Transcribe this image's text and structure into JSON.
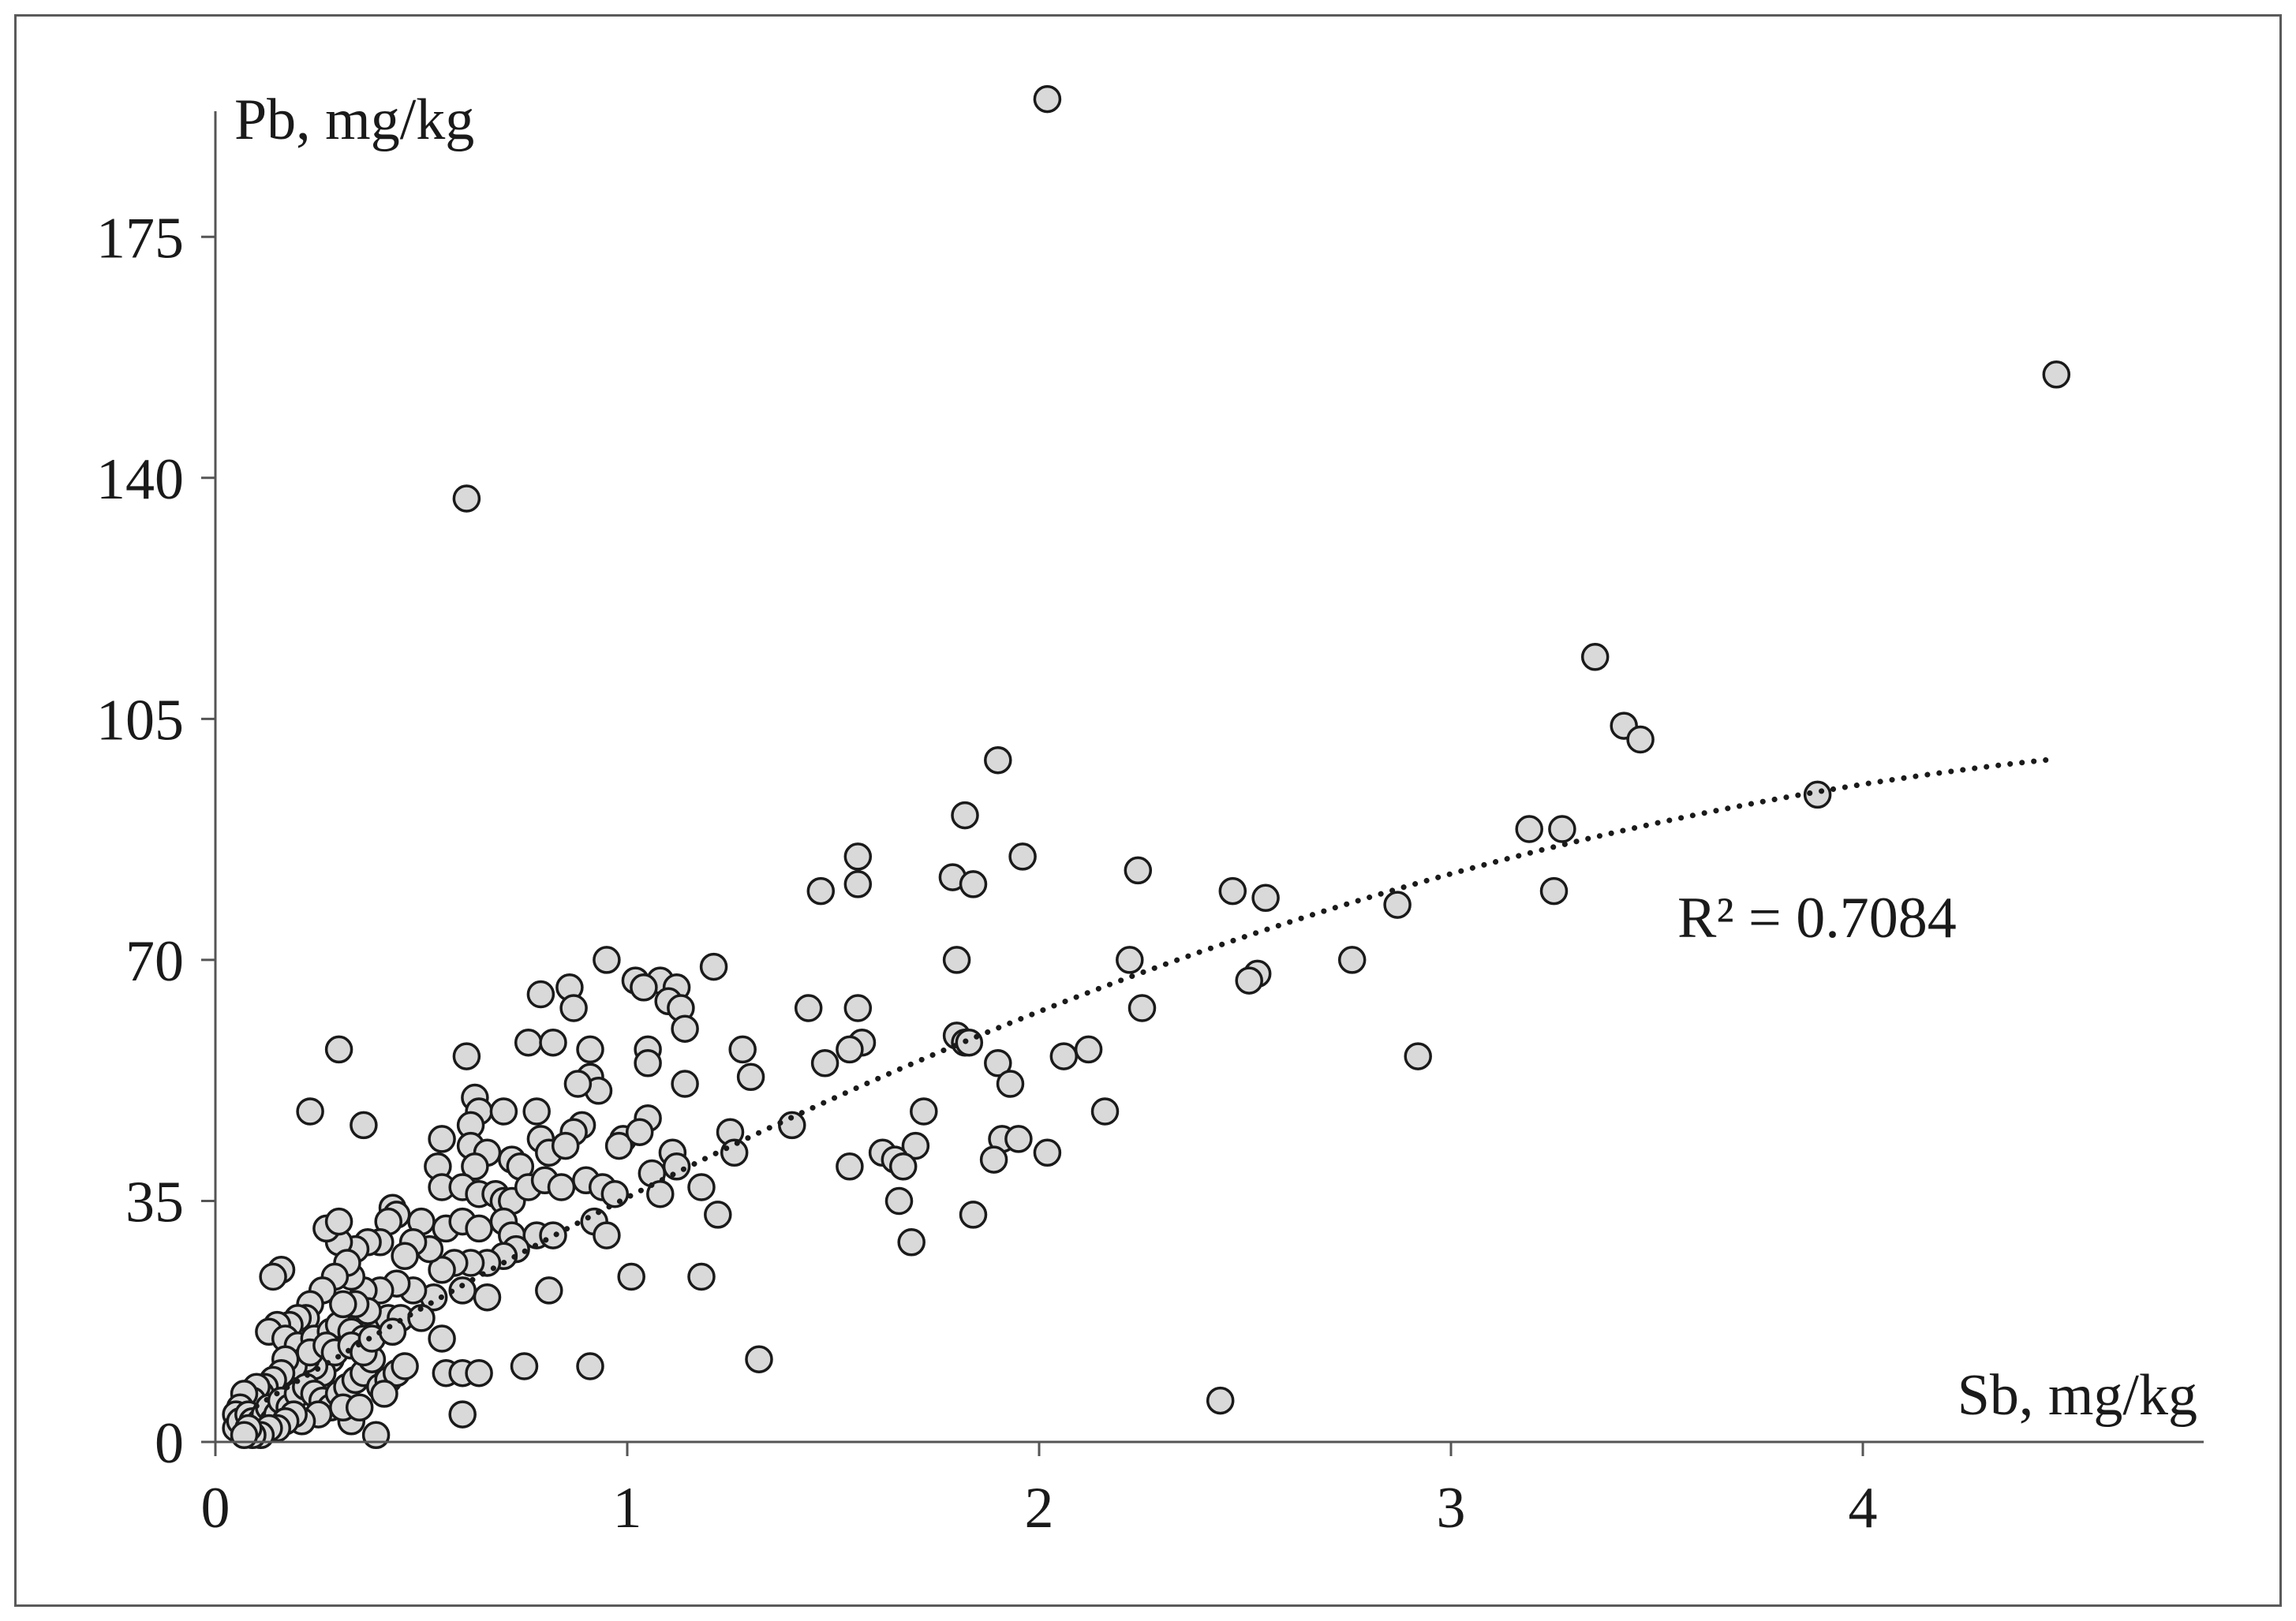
{
  "chart_data": {
    "type": "scatter",
    "title": "",
    "xlabel": "Sb, mg/kg",
    "ylabel": "Pb, mg/kg",
    "xlim": [
      0,
      4.8
    ],
    "ylim": [
      0,
      190
    ],
    "x_ticks": [
      "0",
      "1",
      "2",
      "3",
      "4"
    ],
    "y_ticks": [
      "0",
      "35",
      "70",
      "105",
      "140",
      "175"
    ],
    "grid": false,
    "legend": "none",
    "annotation": "R² = 0.7084",
    "trendline": {
      "type": "polynomial",
      "r2": 0.7084,
      "x_range": [
        0.1,
        4.45
      ],
      "coefficients": [
        1.5,
        37.5,
        -3.5
      ]
    },
    "colors": {
      "marker_fill": "#d9d9d9",
      "marker_edge": "#1a1a1a",
      "axis": "#555555"
    },
    "points": [
      [
        2.02,
        195
      ],
      [
        4.47,
        155
      ],
      [
        0.61,
        137
      ],
      [
        3.35,
        114
      ],
      [
        3.42,
        104
      ],
      [
        3.46,
        102
      ],
      [
        1.9,
        99
      ],
      [
        3.89,
        94
      ],
      [
        1.82,
        91
      ],
      [
        3.19,
        89
      ],
      [
        3.27,
        89
      ],
      [
        1.56,
        85
      ],
      [
        1.96,
        85
      ],
      [
        1.79,
        82
      ],
      [
        1.84,
        81
      ],
      [
        2.24,
        83
      ],
      [
        1.56,
        81
      ],
      [
        1.47,
        80
      ],
      [
        2.47,
        80
      ],
      [
        3.25,
        80
      ],
      [
        2.55,
        79
      ],
      [
        2.87,
        78
      ],
      [
        2.22,
        70
      ],
      [
        2.76,
        70
      ],
      [
        1.8,
        70
      ],
      [
        2.53,
        68
      ],
      [
        2.51,
        67
      ],
      [
        0.95,
        70
      ],
      [
        1.21,
        69
      ],
      [
        1.02,
        67
      ],
      [
        1.08,
        67
      ],
      [
        1.12,
        66
      ],
      [
        1.04,
        66
      ],
      [
        1.1,
        64
      ],
      [
        1.13,
        63
      ],
      [
        0.86,
        66
      ],
      [
        0.79,
        65
      ],
      [
        0.87,
        63
      ],
      [
        1.14,
        60
      ],
      [
        1.44,
        63
      ],
      [
        1.56,
        63
      ],
      [
        2.25,
        63
      ],
      [
        1.8,
        59
      ],
      [
        1.82,
        58
      ],
      [
        1.83,
        58
      ],
      [
        2.12,
        57
      ],
      [
        2.06,
        56
      ],
      [
        2.92,
        56
      ],
      [
        1.57,
        58
      ],
      [
        1.54,
        57
      ],
      [
        1.48,
        55
      ],
      [
        1.28,
        57
      ],
      [
        0.76,
        58
      ],
      [
        0.82,
        58
      ],
      [
        0.91,
        57
      ],
      [
        1.05,
        57
      ],
      [
        1.05,
        55
      ],
      [
        0.61,
        56
      ],
      [
        0.3,
        57
      ],
      [
        1.3,
        53
      ],
      [
        1.9,
        55
      ],
      [
        1.93,
        52
      ],
      [
        1.14,
        52
      ],
      [
        0.91,
        53
      ],
      [
        0.93,
        51
      ],
      [
        0.88,
        52
      ],
      [
        0.63,
        50
      ],
      [
        0.64,
        48
      ],
      [
        0.7,
        48
      ],
      [
        0.62,
        46
      ],
      [
        0.78,
        48
      ],
      [
        0.89,
        46
      ],
      [
        0.87,
        45
      ],
      [
        1.05,
        47
      ],
      [
        1.72,
        48
      ],
      [
        2.16,
        48
      ],
      [
        1.4,
        46
      ],
      [
        1.25,
        45
      ],
      [
        1.91,
        44
      ],
      [
        1.95,
        44
      ],
      [
        1.7,
        43
      ],
      [
        2.02,
        42
      ],
      [
        1.62,
        42
      ],
      [
        1.65,
        41
      ],
      [
        1.67,
        40
      ],
      [
        1.54,
        40
      ],
      [
        1.89,
        41
      ],
      [
        1.26,
        42
      ],
      [
        1.11,
        42
      ],
      [
        1.12,
        40
      ],
      [
        1.06,
        39
      ],
      [
        0.99,
        44
      ],
      [
        0.98,
        43
      ],
      [
        1.03,
        45
      ],
      [
        0.55,
        44
      ],
      [
        0.62,
        43
      ],
      [
        0.66,
        42
      ],
      [
        0.72,
        41
      ],
      [
        0.79,
        44
      ],
      [
        0.81,
        42
      ],
      [
        0.85,
        43
      ],
      [
        0.74,
        40
      ],
      [
        0.63,
        40
      ],
      [
        0.54,
        40
      ],
      [
        0.55,
        37
      ],
      [
        0.6,
        37
      ],
      [
        0.64,
        36
      ],
      [
        0.68,
        36
      ],
      [
        0.7,
        35
      ],
      [
        0.72,
        35
      ],
      [
        0.76,
        37
      ],
      [
        0.8,
        38
      ],
      [
        0.84,
        37
      ],
      [
        0.9,
        38
      ],
      [
        0.94,
        37
      ],
      [
        0.97,
        36
      ],
      [
        1.08,
        36
      ],
      [
        1.18,
        37
      ],
      [
        1.22,
        33
      ],
      [
        1.84,
        33
      ],
      [
        1.66,
        35
      ],
      [
        1.69,
        29
      ],
      [
        0.36,
        46
      ],
      [
        0.23,
        48
      ],
      [
        0.43,
        34
      ],
      [
        0.44,
        33
      ],
      [
        0.42,
        32
      ],
      [
        0.5,
        32
      ],
      [
        0.56,
        31
      ],
      [
        0.6,
        32
      ],
      [
        0.64,
        31
      ],
      [
        0.7,
        32
      ],
      [
        0.72,
        30
      ],
      [
        0.78,
        30
      ],
      [
        0.82,
        30
      ],
      [
        0.92,
        32
      ],
      [
        0.95,
        30
      ],
      [
        0.73,
        28
      ],
      [
        0.7,
        27
      ],
      [
        0.66,
        26
      ],
      [
        0.62,
        26
      ],
      [
        0.58,
        26
      ],
      [
        0.55,
        25
      ],
      [
        0.52,
        28
      ],
      [
        0.48,
        29
      ],
      [
        0.46,
        27
      ],
      [
        0.4,
        29
      ],
      [
        0.37,
        29
      ],
      [
        0.34,
        28
      ],
      [
        0.3,
        29
      ],
      [
        0.27,
        31
      ],
      [
        0.3,
        32
      ],
      [
        0.16,
        25
      ],
      [
        0.14,
        24
      ],
      [
        1.01,
        24
      ],
      [
        1.18,
        24
      ],
      [
        0.81,
        22
      ],
      [
        0.66,
        21
      ],
      [
        0.6,
        22
      ],
      [
        0.53,
        21
      ],
      [
        0.48,
        22
      ],
      [
        0.44,
        23
      ],
      [
        0.4,
        22
      ],
      [
        0.36,
        22
      ],
      [
        0.33,
        24
      ],
      [
        0.32,
        26
      ],
      [
        0.29,
        24
      ],
      [
        0.26,
        22
      ],
      [
        0.23,
        20
      ],
      [
        0.22,
        18
      ],
      [
        0.2,
        18
      ],
      [
        0.18,
        17
      ],
      [
        0.15,
        17
      ],
      [
        0.13,
        16
      ],
      [
        0.17,
        15
      ],
      [
        0.2,
        14
      ],
      [
        0.24,
        15
      ],
      [
        0.28,
        16
      ],
      [
        0.3,
        17
      ],
      [
        0.33,
        16
      ],
      [
        0.36,
        15
      ],
      [
        0.4,
        17
      ],
      [
        0.42,
        18
      ],
      [
        0.45,
        18
      ],
      [
        0.5,
        18
      ],
      [
        0.55,
        15
      ],
      [
        0.37,
        19
      ],
      [
        0.34,
        20
      ],
      [
        0.31,
        20
      ],
      [
        0.28,
        12
      ],
      [
        0.26,
        10
      ],
      [
        0.24,
        11
      ],
      [
        0.22,
        12
      ],
      [
        0.19,
        11
      ],
      [
        0.17,
        12
      ],
      [
        0.16,
        10
      ],
      [
        0.14,
        9
      ],
      [
        0.12,
        8
      ],
      [
        0.11,
        7
      ],
      [
        0.1,
        8
      ],
      [
        0.09,
        6
      ],
      [
        0.07,
        7
      ],
      [
        0.06,
        5
      ],
      [
        0.05,
        4
      ],
      [
        0.05,
        2
      ],
      [
        0.06,
        3
      ],
      [
        0.08,
        4
      ],
      [
        0.09,
        3
      ],
      [
        0.1,
        2
      ],
      [
        0.11,
        3
      ],
      [
        0.12,
        4
      ],
      [
        0.13,
        5
      ],
      [
        0.14,
        3
      ],
      [
        0.15,
        4
      ],
      [
        0.16,
        6
      ],
      [
        0.18,
        5
      ],
      [
        0.2,
        7
      ],
      [
        0.22,
        8
      ],
      [
        0.24,
        7
      ],
      [
        0.26,
        6
      ],
      [
        0.28,
        5
      ],
      [
        0.3,
        7
      ],
      [
        0.32,
        8
      ],
      [
        0.34,
        9
      ],
      [
        0.36,
        10
      ],
      [
        0.38,
        12
      ],
      [
        0.4,
        8
      ],
      [
        0.42,
        9
      ],
      [
        0.44,
        10
      ],
      [
        0.46,
        11
      ],
      [
        0.25,
        4
      ],
      [
        0.21,
        3
      ],
      [
        0.19,
        4
      ],
      [
        0.17,
        3
      ],
      [
        0.15,
        2
      ],
      [
        0.13,
        2
      ],
      [
        0.11,
        1
      ],
      [
        0.09,
        1
      ],
      [
        0.08,
        2
      ],
      [
        0.07,
        1
      ],
      [
        0.33,
        3
      ],
      [
        0.31,
        5
      ],
      [
        0.35,
        5
      ],
      [
        0.39,
        1
      ],
      [
        0.41,
        7
      ],
      [
        0.6,
        4
      ],
      [
        0.56,
        10
      ],
      [
        0.6,
        10
      ],
      [
        0.64,
        10
      ],
      [
        0.75,
        11
      ],
      [
        0.91,
        11
      ],
      [
        1.32,
        12
      ],
      [
        2.44,
        6
      ],
      [
        0.23,
        13
      ],
      [
        0.27,
        14
      ],
      [
        0.29,
        13
      ],
      [
        0.33,
        14
      ],
      [
        0.36,
        13
      ],
      [
        0.38,
        15
      ],
      [
        0.43,
        16
      ]
    ]
  }
}
